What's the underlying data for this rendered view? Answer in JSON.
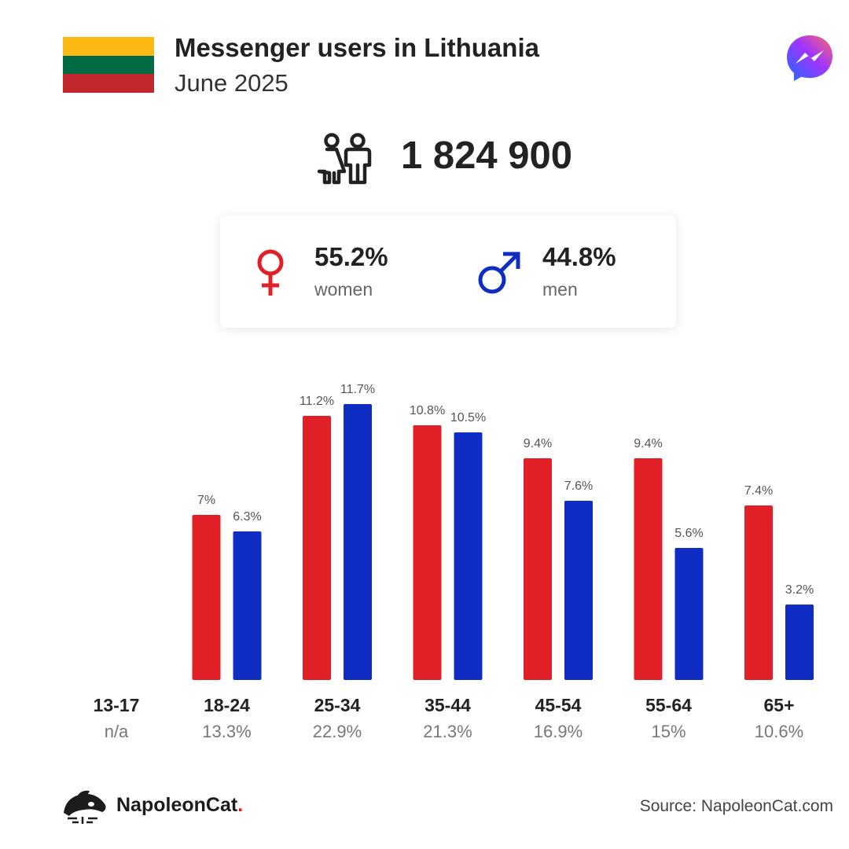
{
  "header": {
    "title": "Messenger users in Lithuania",
    "subtitle": "June 2025",
    "flag_colors": [
      "#FDB913",
      "#006A44",
      "#C1272D"
    ],
    "app_icon": "messenger-icon"
  },
  "summary": {
    "total_users": "1 824 900",
    "people_icon": "people-icon",
    "women": {
      "percent": "55.2%",
      "label": "women",
      "icon": "female-symbol-icon",
      "color": "#e02026"
    },
    "men": {
      "percent": "44.8%",
      "label": "men",
      "icon": "male-symbol-icon",
      "color": "#0f2cc3"
    }
  },
  "chart_data": {
    "type": "bar",
    "categories": [
      "13-17",
      "18-24",
      "25-34",
      "35-44",
      "45-54",
      "55-64",
      "65+"
    ],
    "category_totals": [
      "n/a",
      "13.3%",
      "22.9%",
      "21.3%",
      "16.9%",
      "15%",
      "10.6%"
    ],
    "series": [
      {
        "key": "women",
        "color": "#e02026",
        "values": [
          null,
          7,
          11.2,
          10.8,
          9.4,
          9.4,
          7.4
        ],
        "labels": [
          null,
          "7%",
          "11.2%",
          "10.8%",
          "9.4%",
          "9.4%",
          "7.4%"
        ]
      },
      {
        "key": "men",
        "color": "#0f2cc3",
        "values": [
          null,
          6.3,
          11.7,
          10.5,
          7.6,
          5.6,
          3.2
        ],
        "labels": [
          null,
          "6.3%",
          "11.7%",
          "10.5%",
          "7.6%",
          "5.6%",
          "3.2%"
        ]
      }
    ],
    "unit": "%",
    "grid": false
  },
  "footer": {
    "brand_name": "NapoleonCat",
    "brand_dot": ".",
    "brand_icon": "napoleoncat-logo-icon",
    "source": "Source: NapoleonCat.com"
  }
}
